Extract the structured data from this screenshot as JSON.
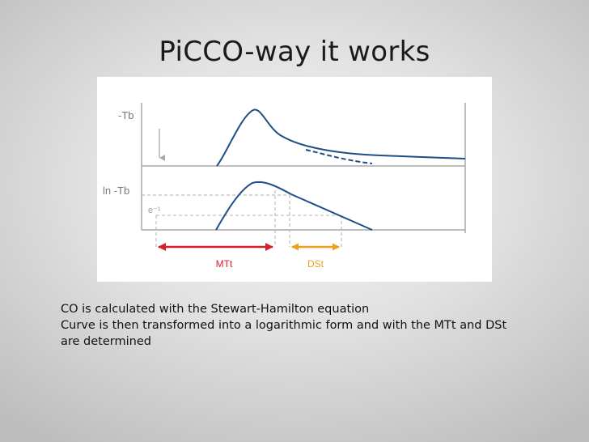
{
  "slide": {
    "title": "PiCCO-way it works"
  },
  "diagram": {
    "top_curve_label": "-Tb",
    "bottom_curve_label": "ln -Tb",
    "threshold_label": "e⁻¹",
    "mtt_label": "MTt",
    "dst_label": "DSt",
    "colors": {
      "curve": "#1d4f86",
      "axis": "#a8a8a8",
      "guide": "#b0b0b0",
      "mtt": "#d6202b",
      "dst": "#eba11d",
      "label": "#7a7a7a"
    }
  },
  "notes": {
    "line1": "CO is calculated with the Stewart-Hamilton equation",
    "line2": "Curve is then transformed into a logarithmic form and with the MTt and DSt",
    "line3": "are determined"
  }
}
